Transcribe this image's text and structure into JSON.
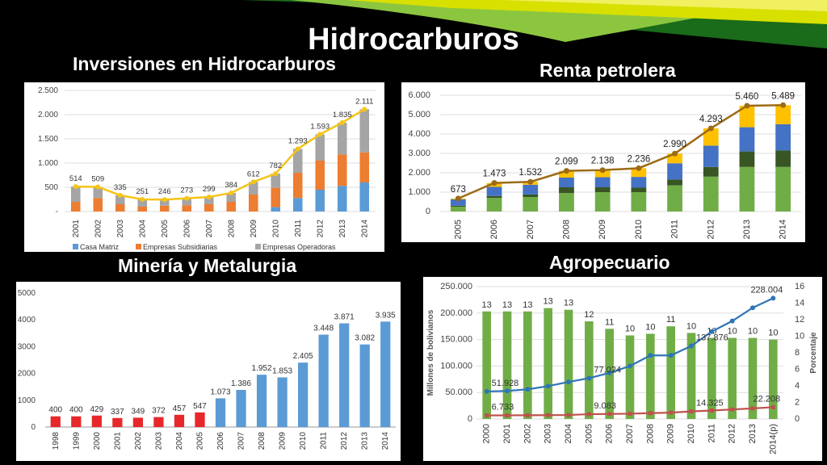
{
  "slide_title": "Hidrocarburos",
  "chart_data": [
    {
      "type": "bar",
      "stacked": true,
      "title": "Inversiones en Hidrocarburos",
      "categories": [
        "2001",
        "2002",
        "2003",
        "2004",
        "2005",
        "2006",
        "2007",
        "2008",
        "2009",
        "2010",
        "2011",
        "2012",
        "2013",
        "2014"
      ],
      "series": [
        {
          "name": "Casa Matriz",
          "color": "#5B9BD5",
          "values": [
            0,
            0,
            0,
            0,
            0,
            0,
            0,
            0,
            0,
            90,
            280,
            450,
            530,
            600
          ]
        },
        {
          "name": "Empresas Subsidiarias",
          "color": "#ED7D31",
          "values": [
            200,
            280,
            150,
            100,
            120,
            130,
            150,
            200,
            350,
            400,
            520,
            600,
            650,
            620
          ]
        },
        {
          "name": "Empresas Operadoras",
          "color": "#A5A5A5",
          "values": [
            314,
            229,
            185,
            151,
            126,
            143,
            149,
            184,
            262,
            292,
            493,
            543,
            655,
            891
          ]
        }
      ],
      "line": {
        "values": [
          514,
          509,
          335,
          251,
          246,
          273,
          299,
          384,
          612,
          782,
          1293,
          1593,
          1835,
          2111
        ],
        "color": "#F5C518"
      },
      "data_labels": [
        "514",
        "509",
        "335",
        "251",
        "246",
        "273",
        "299",
        "384",
        "612",
        "782",
        "1.293",
        "1.593",
        "1.835",
        "2.111"
      ],
      "y_ticks": [
        "-",
        "500",
        "1.000",
        "1.500",
        "2.000",
        "2.500"
      ],
      "ylim": [
        0,
        2500
      ],
      "legend": "bottom"
    },
    {
      "type": "bar",
      "stacked": true,
      "title": "Renta petrolera",
      "categories": [
        "2005",
        "2006",
        "2007",
        "2008",
        "2009",
        "2010",
        "2011",
        "2012",
        "2013",
        "2014"
      ],
      "series": [
        {
          "color": "#70AD47",
          "values": [
            250,
            700,
            750,
            950,
            1000,
            1000,
            1350,
            1800,
            2300,
            2300
          ]
        },
        {
          "color": "#375623",
          "values": [
            50,
            100,
            130,
            300,
            250,
            230,
            300,
            500,
            800,
            850
          ]
        },
        {
          "color": "#4472C4",
          "values": [
            330,
            473,
            500,
            500,
            520,
            556,
            840,
            1100,
            1250,
            1350
          ]
        },
        {
          "color": "#FFC000",
          "values": [
            43,
            200,
            152,
            349,
            368,
            450,
            500,
            893,
            1110,
            989
          ]
        }
      ],
      "line": {
        "values": [
          673,
          1473,
          1532,
          2099,
          2138,
          2236,
          2990,
          4293,
          5460,
          5489
        ],
        "color": "#9C6B14"
      },
      "data_labels": [
        "673",
        "1.473",
        "1.532",
        "2.099",
        "2.138",
        "2.236",
        "2.990",
        "4.293",
        "5.460",
        "5.489"
      ],
      "y_ticks": [
        "0",
        "1.000",
        "2.000",
        "3.000",
        "4.000",
        "5.000",
        "6.000"
      ],
      "ylim": [
        0,
        6000
      ]
    },
    {
      "type": "bar",
      "title": "Minería y Metalurgia",
      "categories": [
        "1998",
        "1999",
        "2000",
        "2001",
        "2002",
        "2003",
        "2004",
        "2005",
        "2006",
        "2007",
        "2008",
        "2009",
        "2010",
        "2011",
        "2012",
        "2013",
        "2014"
      ],
      "values": [
        400,
        400,
        429,
        337,
        349,
        372,
        457,
        547,
        1073,
        1386,
        1952,
        1853,
        2405,
        3448,
        3871,
        3082,
        3935
      ],
      "data_labels": [
        "400",
        "400",
        "429",
        "337",
        "349",
        "372",
        "457",
        "547",
        "1.073",
        "1.386",
        "1.952",
        "1.853",
        "2.405",
        "3.448",
        "3.871",
        "3.082",
        "3.935"
      ],
      "colors": {
        "early": "#E8272A",
        "late": "#5B9BD5"
      },
      "red_count": 8,
      "y_ticks": [
        "0",
        "1000",
        "2000",
        "3000",
        "4000",
        "5000"
      ],
      "ylim": [
        0,
        5000
      ]
    },
    {
      "type": "bar",
      "title": "Agropecuario",
      "categories": [
        "2000",
        "2001",
        "2002",
        "2003",
        "2004",
        "2005",
        "2006",
        "2007",
        "2008",
        "2009",
        "2010",
        "2011",
        "2012",
        "2013",
        "2014(p)"
      ],
      "bars": {
        "color": "#70AD47",
        "values": [
          13,
          13,
          13,
          13.4,
          13.2,
          11.8,
          10.9,
          10.1,
          10.3,
          11.2,
          10.4,
          9.8,
          9.8,
          9.8,
          9.6
        ],
        "labels": [
          "13",
          "13",
          "13",
          "13",
          "13",
          "12",
          "11",
          "10",
          "10",
          "11",
          "10",
          "10",
          "10",
          "10",
          "10"
        ]
      },
      "line_blue": {
        "color": "#2E75B6",
        "values": [
          51928,
          53000,
          56000,
          62000,
          70000,
          77024,
          87000,
          100000,
          120000,
          120000,
          137876,
          165000,
          185000,
          210000,
          228004
        ]
      },
      "line_red": {
        "color": "#C0504D",
        "values": [
          6733,
          6900,
          7000,
          7200,
          7500,
          9083,
          9500,
          10000,
          11000,
          12000,
          14325,
          16000,
          18000,
          20000,
          22208
        ]
      },
      "blue_labels": {
        "0": "51.928",
        "5": "77.024",
        "10": "137.876",
        "14": "228.004"
      },
      "red_labels": {
        "0": "6.733",
        "5": "9.083",
        "10": "14.325",
        "14": "22.208"
      },
      "ylabel": "Millones de bolivianos",
      "y2label": "Porcentaje",
      "y_ticks": [
        "0",
        "50.000",
        "100.000",
        "150.000",
        "200.000",
        "250.000"
      ],
      "ylim": [
        0,
        250000
      ],
      "y2_ticks": [
        "0",
        "2",
        "4",
        "6",
        "8",
        "10",
        "12",
        "14",
        "16"
      ],
      "y2lim": [
        0,
        16
      ]
    }
  ]
}
